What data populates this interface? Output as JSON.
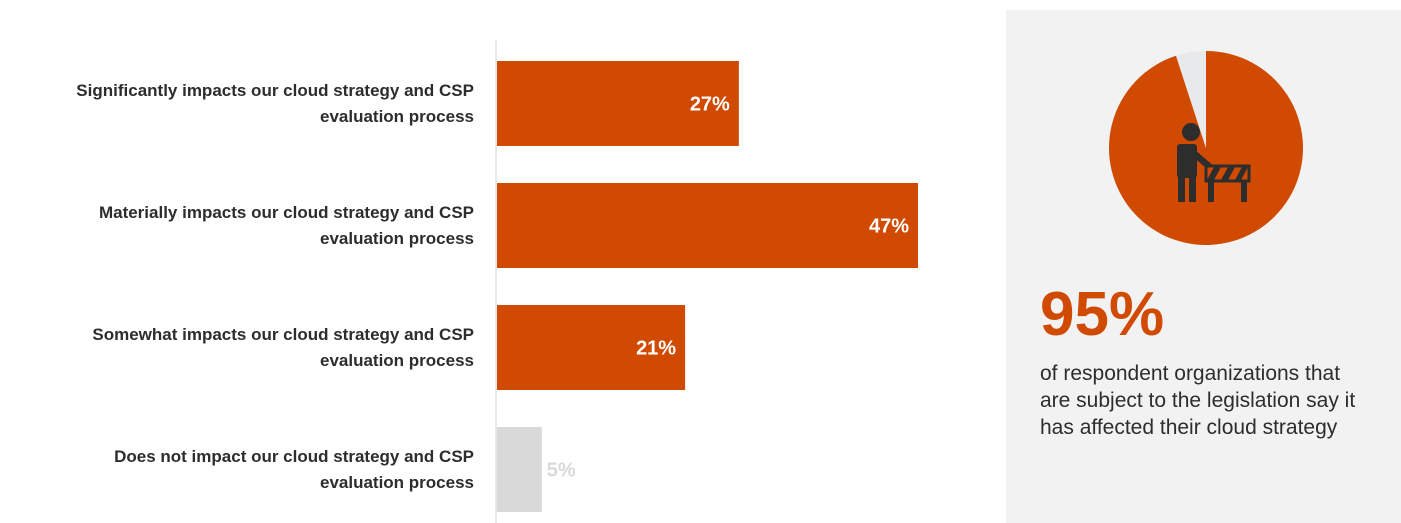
{
  "colors": {
    "accent": "#d04a02",
    "muted": "#d9d9d9",
    "axis": "#cfcfcf",
    "panel": "#f2f2f2",
    "icon": "#2d2d2d"
  },
  "chart_data": [
    {
      "type": "bar",
      "orientation": "horizontal",
      "categories": [
        [
          "Significantly impacts our cloud strategy and CSP",
          "evaluation process"
        ],
        [
          "Materially impacts our cloud strategy and CSP",
          "evaluation process"
        ],
        [
          "Somewhat impacts our cloud strategy and CSP",
          "evaluation process"
        ],
        [
          "Does not impact our cloud strategy and CSP",
          "evaluation process"
        ]
      ],
      "values": [
        27,
        47,
        21,
        5
      ],
      "value_labels": [
        "27%",
        "47%",
        "21%",
        "5%"
      ],
      "unit": "%",
      "xlim": [
        0,
        47
      ],
      "bar_colors": [
        "#d04a02",
        "#d04a02",
        "#d04a02",
        "#d9d9d9"
      ],
      "grid": false
    },
    {
      "type": "pie",
      "values": [
        95,
        5
      ],
      "colors": [
        "#d04a02",
        "#e8e9eb"
      ],
      "icon": "person-at-barrier-icon"
    }
  ],
  "stat": {
    "value": "95%",
    "description": "of respondent organizations that are subject to the legislation say it has affected their cloud strategy"
  }
}
